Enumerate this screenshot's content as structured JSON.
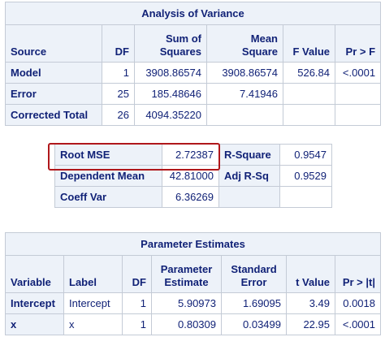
{
  "anova": {
    "title": "Analysis of Variance",
    "headers": {
      "source": "Source",
      "df": "DF",
      "ss_line1": "Sum of",
      "ss_line2": "Squares",
      "ms_line1": "Mean",
      "ms_line2": "Square",
      "fvalue": "F Value",
      "prf": "Pr > F"
    },
    "rows": [
      {
        "source": "Model",
        "df": "1",
        "ss": "3908.86574",
        "ms": "3908.86574",
        "f": "526.84",
        "p": "<.0001"
      },
      {
        "source": "Error",
        "df": "25",
        "ss": "185.48646",
        "ms": "7.41946",
        "f": "",
        "p": ""
      },
      {
        "source": "Corrected Total",
        "df": "26",
        "ss": "4094.35220",
        "ms": "",
        "f": "",
        "p": ""
      }
    ]
  },
  "fit": {
    "rows": [
      {
        "label": "Root MSE",
        "value": "2.72387",
        "label2": "R-Square",
        "value2": "0.9547"
      },
      {
        "label": "Dependent Mean",
        "value": "42.81000",
        "label2": "Adj R-Sq",
        "value2": "0.9529"
      },
      {
        "label": "Coeff Var",
        "value": "6.36269",
        "label2": "",
        "value2": ""
      }
    ],
    "highlight_color": "#b0171b"
  },
  "params": {
    "title": "Parameter Estimates",
    "headers": {
      "variable": "Variable",
      "label": "Label",
      "df": "DF",
      "pe_line1": "Parameter",
      "pe_line2": "Estimate",
      "se_line1": "Standard",
      "se_line2": "Error",
      "tvalue": "t Value",
      "prt": "Pr > |t|"
    },
    "rows": [
      {
        "variable": "Intercept",
        "label": "Intercept",
        "df": "1",
        "estimate": "5.90973",
        "se": "1.69095",
        "t": "3.49",
        "p": "0.0018"
      },
      {
        "variable": "x",
        "label": "x",
        "df": "1",
        "estimate": "0.80309",
        "se": "0.03499",
        "t": "22.95",
        "p": "<.0001"
      }
    ]
  },
  "colors": {
    "header_bg": "#edf2f9",
    "text": "#112277",
    "border": "#c4cbd6"
  }
}
